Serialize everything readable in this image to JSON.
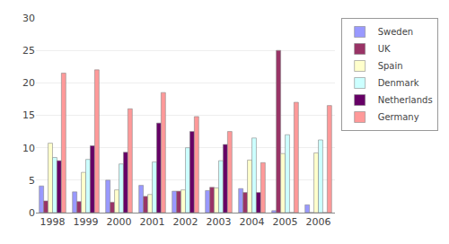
{
  "chart_data": {
    "type": "bar",
    "categories": [
      "1998",
      "1999",
      "2000",
      "2001",
      "2002",
      "2003",
      "2004",
      "2005",
      "2006"
    ],
    "series": [
      {
        "name": "Sweden",
        "color": "#9999FF",
        "values": [
          4.1,
          3.2,
          5.0,
          4.2,
          3.3,
          3.4,
          3.7,
          0.3,
          1.2
        ]
      },
      {
        "name": "UK",
        "color": "#993366",
        "values": [
          1.8,
          1.7,
          1.6,
          2.5,
          3.3,
          3.9,
          3.1,
          25.0,
          0.0
        ]
      },
      {
        "name": "Spain",
        "color": "#FFFFCC",
        "values": [
          10.7,
          6.2,
          3.5,
          2.8,
          3.5,
          3.8,
          8.1,
          9.1,
          9.2
        ]
      },
      {
        "name": "Denmark",
        "color": "#CCFFFF",
        "values": [
          8.5,
          8.2,
          7.5,
          7.8,
          10.0,
          8.0,
          11.5,
          12.0,
          11.2
        ]
      },
      {
        "name": "Netherlands",
        "color": "#660066",
        "values": [
          8.0,
          10.3,
          9.3,
          13.8,
          12.5,
          10.5,
          3.1,
          0.0,
          0.0
        ]
      },
      {
        "name": "Germany",
        "color": "#FF9999",
        "values": [
          21.5,
          22.0,
          16.0,
          18.5,
          14.8,
          12.5,
          7.7,
          17.0,
          16.5
        ]
      }
    ],
    "ylim": [
      0,
      30
    ],
    "yticks": [
      0,
      5,
      10,
      15,
      20,
      25,
      30
    ],
    "grid": true,
    "legend": "right"
  }
}
